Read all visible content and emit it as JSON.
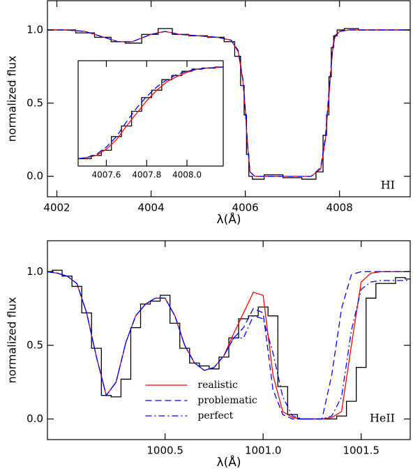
{
  "chart_data": [
    {
      "type": "line",
      "xlabel": "λ(Å)",
      "ylabel": "normalized flux",
      "annotation": "HI",
      "xlim": [
        4001.8,
        4009.5
      ],
      "ylim": [
        -0.14,
        1.2
      ],
      "xticks": [
        4002,
        4004,
        4006,
        4008
      ],
      "yticks": [
        {
          "value": 0,
          "label": "0.0"
        },
        {
          "value": 0.5,
          "label": "0.5"
        },
        {
          "value": 1,
          "label": "1.0"
        }
      ],
      "x": [
        4001.8,
        4002.2,
        4002.6,
        4003.0,
        4003.3,
        4003.6,
        4004.0,
        4004.3,
        4004.6,
        4005.0,
        4005.4,
        4005.7,
        4005.85,
        4005.95,
        4006.0,
        4006.05,
        4006.1,
        4006.2,
        4006.6,
        4007.0,
        4007.4,
        4007.6,
        4007.7,
        4007.75,
        4007.8,
        4007.85,
        4007.9,
        4008.0,
        4008.2,
        4008.6,
        4009.0,
        4009.5
      ],
      "series": [
        {
          "color": "#000000",
          "style": "step",
          "values": [
            1.0,
            1.0,
            0.98,
            0.95,
            0.92,
            0.91,
            0.97,
            1.01,
            0.97,
            0.96,
            0.95,
            0.92,
            0.82,
            0.62,
            0.42,
            0.15,
            0.0,
            -0.02,
            0.01,
            -0.01,
            -0.02,
            0.03,
            0.28,
            0.42,
            0.68,
            0.88,
            0.96,
            1.0,
            1.01,
            1.0,
            1.0,
            1.0
          ]
        },
        {
          "color": "#ff0000",
          "style": "solid",
          "values": [
            1.0,
            1.0,
            0.99,
            0.95,
            0.92,
            0.92,
            0.97,
            0.99,
            0.97,
            0.96,
            0.95,
            0.93,
            0.85,
            0.65,
            0.45,
            0.2,
            0.03,
            0,
            0,
            0,
            0,
            0.05,
            0.25,
            0.45,
            0.65,
            0.85,
            0.95,
            0.99,
            1.0,
            1.0,
            1.0,
            1.0
          ]
        },
        {
          "color": "#0000ff",
          "style": "dashed",
          "values": [
            1.0,
            1.0,
            0.99,
            0.95,
            0.92,
            0.92,
            0.97,
            0.99,
            0.97,
            0.96,
            0.95,
            0.93,
            0.86,
            0.66,
            0.46,
            0.21,
            0.03,
            0,
            0,
            0,
            0,
            0.06,
            0.27,
            0.48,
            0.68,
            0.87,
            0.96,
            0.99,
            1.0,
            1.0,
            1.0,
            1.0
          ]
        }
      ]
    },
    {
      "type": "line",
      "xlim": [
        4007.46,
        4008.18
      ],
      "ylim": [
        0,
        1
      ],
      "xticks": [
        4007.6,
        4007.8,
        {
          "value": 4008,
          "label": "4008.0"
        }
      ],
      "x": [
        4007.46,
        4007.5,
        4007.55,
        4007.6,
        4007.65,
        4007.7,
        4007.75,
        4007.8,
        4007.85,
        4007.9,
        4007.95,
        4008.0,
        4008.05,
        4008.1,
        4008.18
      ],
      "series": [
        {
          "color": "#000000",
          "style": "step",
          "values": [
            0.07,
            0.07,
            0.1,
            0.15,
            0.28,
            0.38,
            0.52,
            0.65,
            0.72,
            0.82,
            0.86,
            0.9,
            0.92,
            0.93,
            0.94
          ]
        },
        {
          "color": "#ff0000",
          "style": "solid",
          "values": [
            0.07,
            0.08,
            0.1,
            0.16,
            0.25,
            0.38,
            0.5,
            0.62,
            0.72,
            0.8,
            0.85,
            0.89,
            0.92,
            0.93,
            0.94
          ]
        },
        {
          "color": "#0000ff",
          "style": "dashed",
          "values": [
            0.07,
            0.08,
            0.11,
            0.18,
            0.28,
            0.42,
            0.55,
            0.66,
            0.75,
            0.82,
            0.87,
            0.9,
            0.92,
            0.93,
            0.94
          ]
        }
      ]
    },
    {
      "type": "line",
      "xlabel": "λ(Å)",
      "ylabel": "normalized flux",
      "annotation": "HeII",
      "legend": "lower center",
      "xlim": [
        999.9,
        1001.75
      ],
      "ylim": [
        -0.14,
        1.21
      ],
      "xticks": [
        1000.5,
        {
          "value": 1001,
          "label": "1001.0"
        },
        1001.5
      ],
      "yticks": [
        {
          "value": 0,
          "label": "0.0"
        },
        {
          "value": 0.5,
          "label": "0.5"
        },
        {
          "value": 1,
          "label": "1.0"
        }
      ],
      "x": [
        999.9,
        999.95,
        1000.0,
        1000.05,
        1000.1,
        1000.15,
        1000.2,
        1000.25,
        1000.3,
        1000.35,
        1000.4,
        1000.45,
        1000.5,
        1000.55,
        1000.6,
        1000.65,
        1000.7,
        1000.75,
        1000.8,
        1000.85,
        1000.9,
        1000.95,
        1001.0,
        1001.05,
        1001.1,
        1001.15,
        1001.2,
        1001.25,
        1001.3,
        1001.35,
        1001.4,
        1001.45,
        1001.5,
        1001.55,
        1001.6,
        1001.65,
        1001.7,
        1001.75
      ],
      "series": [
        {
          "color": "#000000",
          "style": "step",
          "values": [
            1.0,
            1.01,
            0.97,
            0.9,
            0.72,
            0.48,
            0.16,
            0.15,
            0.27,
            0.62,
            0.78,
            0.8,
            0.84,
            0.65,
            0.48,
            0.38,
            0.36,
            0.34,
            0.42,
            0.55,
            0.68,
            0.7,
            0.76,
            0.7,
            0.22,
            0.03,
            0,
            0,
            0,
            0,
            0.02,
            0.12,
            0.35,
            0.82,
            0.92,
            0.92,
            0.96,
            0.95
          ]
        },
        {
          "name": "realistic",
          "color": "#ff0000",
          "style": "solid",
          "values": [
            1.0,
            0.99,
            0.97,
            0.92,
            0.72,
            0.42,
            0.16,
            0.25,
            0.52,
            0.7,
            0.78,
            0.82,
            0.82,
            0.7,
            0.5,
            0.38,
            0.33,
            0.35,
            0.43,
            0.58,
            0.72,
            0.86,
            0.84,
            0.3,
            0.05,
            0.01,
            0,
            0,
            0,
            0.01,
            0.05,
            0.5,
            0.93,
            0.99,
            1.0,
            1.0,
            1.0,
            1.0
          ]
        },
        {
          "name": "problematic",
          "color": "#0000ff",
          "style": "dashed",
          "values": [
            1.0,
            0.99,
            0.97,
            0.92,
            0.72,
            0.42,
            0.16,
            0.25,
            0.52,
            0.7,
            0.78,
            0.82,
            0.82,
            0.7,
            0.5,
            0.38,
            0.33,
            0.35,
            0.43,
            0.55,
            0.62,
            0.75,
            0.72,
            0.2,
            0.03,
            0,
            0,
            0,
            0,
            0.3,
            0.75,
            0.98,
            1.0,
            1.0,
            1.0,
            1.0,
            1.0,
            1.0
          ]
        },
        {
          "name": "perfect",
          "color": "#0000ff",
          "style": "dashdot",
          "values": [
            1.0,
            0.99,
            0.97,
            0.92,
            0.72,
            0.42,
            0.16,
            0.25,
            0.52,
            0.7,
            0.78,
            0.82,
            0.82,
            0.7,
            0.5,
            0.38,
            0.33,
            0.35,
            0.43,
            0.55,
            0.55,
            0.7,
            0.68,
            0.45,
            0.15,
            0.02,
            0,
            0,
            0,
            0.02,
            0.15,
            0.6,
            0.88,
            0.93,
            0.94,
            0.94,
            0.94,
            0.94
          ]
        }
      ]
    }
  ]
}
